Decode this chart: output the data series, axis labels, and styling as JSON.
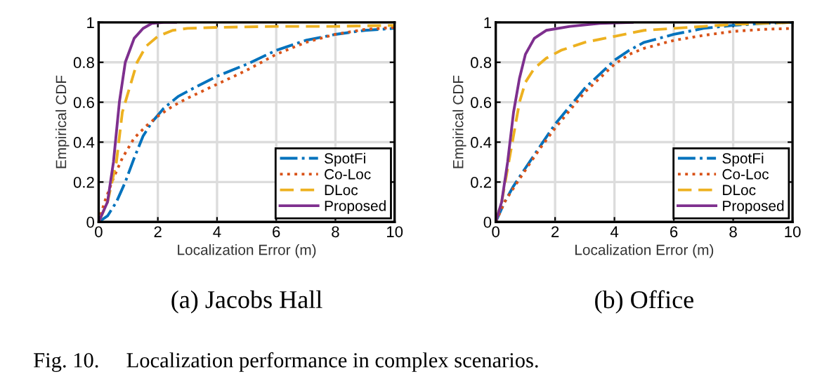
{
  "chart_data": [
    {
      "type": "line",
      "subtitle": "(a) Jacobs Hall",
      "xlabel": "Localization Error (m)",
      "ylabel": "Empirical CDF",
      "xlim": [
        0,
        10
      ],
      "xticks": [
        0,
        2,
        4,
        6,
        8,
        10
      ],
      "ylim": [
        0,
        1
      ],
      "yticks": [
        0,
        0.2,
        0.4,
        0.6,
        0.8,
        1
      ],
      "grid": true,
      "legend": "bottom right",
      "marker": "none",
      "annotations": [
        "Fig. 10.     Localization performance in complex scenarios."
      ],
      "series": [
        {
          "name": "SpotFi",
          "color": "#0072bd",
          "line_style": "dashdot",
          "x": [
            0,
            0.3,
            0.6,
            0.9,
            1.2,
            1.5,
            1.8,
            2.2,
            2.7,
            3.2,
            4,
            5,
            6,
            7,
            8,
            9,
            10
          ],
          "values": [
            0,
            0.03,
            0.1,
            0.2,
            0.32,
            0.43,
            0.5,
            0.57,
            0.63,
            0.67,
            0.73,
            0.79,
            0.86,
            0.91,
            0.94,
            0.96,
            0.97
          ]
        },
        {
          "name": "Co-Loc",
          "color": "#d95319",
          "line_style": "dotted",
          "x": [
            0,
            0.2,
            0.5,
            0.8,
            1.2,
            1.6,
            2,
            2.5,
            3,
            4,
            5,
            6,
            7,
            8,
            9,
            10
          ],
          "values": [
            0,
            0.1,
            0.22,
            0.32,
            0.42,
            0.48,
            0.53,
            0.58,
            0.62,
            0.69,
            0.76,
            0.84,
            0.9,
            0.94,
            0.965,
            0.975
          ]
        },
        {
          "name": "DLoc",
          "color": "#edb120",
          "line_style": "dashed",
          "x": [
            0,
            0.3,
            0.6,
            0.8,
            1.0,
            1.3,
            1.6,
            2,
            2.5,
            3,
            4,
            6,
            8,
            10
          ],
          "values": [
            0,
            0.1,
            0.3,
            0.55,
            0.65,
            0.8,
            0.88,
            0.93,
            0.96,
            0.97,
            0.975,
            0.98,
            0.98,
            0.985
          ]
        },
        {
          "name": "Proposed",
          "color": "#7e2f8e",
          "line_style": "solid",
          "x": [
            0,
            0.3,
            0.5,
            0.7,
            0.9,
            1.2,
            1.5,
            1.8,
            2.2,
            2.6
          ],
          "values": [
            0,
            0.1,
            0.3,
            0.6,
            0.8,
            0.92,
            0.97,
            0.995,
            1,
            1
          ]
        }
      ]
    },
    {
      "type": "line",
      "subtitle": "(b) Office",
      "xlabel": "Localization Error (m)",
      "ylabel": "Empirical CDF",
      "xlim": [
        0,
        10
      ],
      "xticks": [
        0,
        2,
        4,
        6,
        8,
        10
      ],
      "ylim": [
        0,
        1
      ],
      "yticks": [
        0,
        0.2,
        0.4,
        0.6,
        0.8,
        1
      ],
      "grid": true,
      "legend": "bottom right",
      "marker": "none",
      "series": [
        {
          "name": "SpotFi",
          "color": "#0072bd",
          "line_style": "dashdot",
          "x": [
            0,
            0.3,
            0.6,
            1,
            1.5,
            2,
            2.5,
            3,
            3.5,
            4,
            4.5,
            5,
            6,
            7,
            8,
            9,
            10
          ],
          "values": [
            0,
            0.1,
            0.18,
            0.27,
            0.38,
            0.49,
            0.58,
            0.67,
            0.74,
            0.81,
            0.86,
            0.9,
            0.94,
            0.97,
            0.985,
            0.995,
            1
          ]
        },
        {
          "name": "Co-Loc",
          "color": "#d95319",
          "line_style": "dotted",
          "x": [
            0,
            0.3,
            0.6,
            1,
            1.5,
            2,
            2.5,
            3,
            3.5,
            4,
            4.5,
            5,
            6,
            7,
            8,
            9,
            10
          ],
          "values": [
            0,
            0.1,
            0.17,
            0.26,
            0.37,
            0.47,
            0.56,
            0.65,
            0.72,
            0.79,
            0.84,
            0.87,
            0.91,
            0.935,
            0.955,
            0.965,
            0.97
          ]
        },
        {
          "name": "DLoc",
          "color": "#edb120",
          "line_style": "dashed",
          "x": [
            0,
            0.2,
            0.5,
            0.8,
            1.0,
            1.3,
            1.7,
            2.2,
            3,
            4,
            5,
            6,
            7,
            8,
            10
          ],
          "values": [
            0,
            0.1,
            0.35,
            0.6,
            0.7,
            0.77,
            0.82,
            0.86,
            0.9,
            0.93,
            0.96,
            0.97,
            0.98,
            0.99,
            1
          ]
        },
        {
          "name": "Proposed",
          "color": "#7e2f8e",
          "line_style": "solid",
          "x": [
            0,
            0.2,
            0.4,
            0.6,
            0.8,
            1.0,
            1.3,
            1.7,
            2.5,
            3.5,
            4.6
          ],
          "values": [
            0,
            0.1,
            0.3,
            0.55,
            0.72,
            0.84,
            0.92,
            0.96,
            0.98,
            0.995,
            1
          ]
        }
      ]
    }
  ]
}
